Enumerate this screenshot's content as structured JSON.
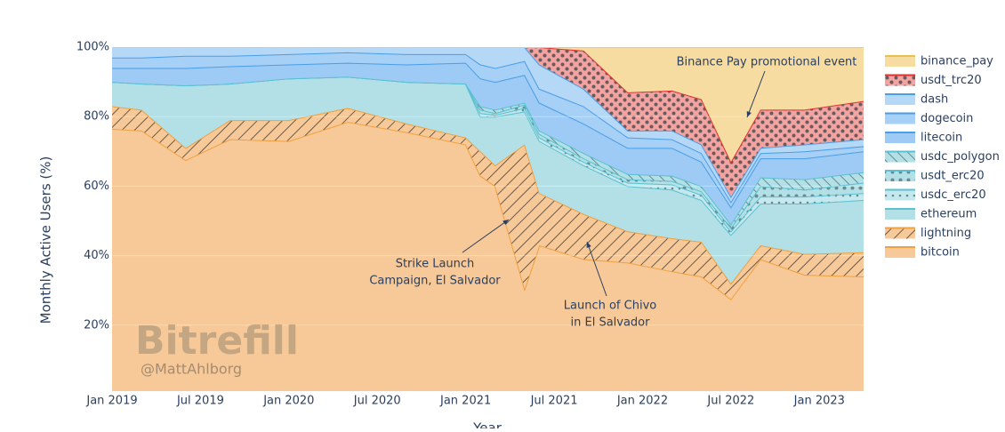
{
  "chart_data": {
    "type": "stacked_area",
    "x_label": "Year",
    "y_label": "Monthly Active Users (%)",
    "x": [
      "2019-01",
      "2019-03",
      "2019-06",
      "2019-09",
      "2020-01",
      "2020-05",
      "2020-09",
      "2021-01",
      "2021-02",
      "2021-03",
      "2021-05",
      "2021-06",
      "2021-09",
      "2021-12",
      "2022-03",
      "2022-05",
      "2022-07",
      "2022-09",
      "2022-12",
      "2023-04"
    ],
    "xlim": [
      "2019-01",
      "2023-04"
    ],
    "xticks": [
      {
        "value": "2019-01",
        "label": "Jan 2019"
      },
      {
        "value": "2019-07",
        "label": "Jul 2019"
      },
      {
        "value": "2020-01",
        "label": "Jan 2020"
      },
      {
        "value": "2020-07",
        "label": "Jul 2020"
      },
      {
        "value": "2021-01",
        "label": "Jan 2021"
      },
      {
        "value": "2021-07",
        "label": "Jul 2021"
      },
      {
        "value": "2022-01",
        "label": "Jan 2022"
      },
      {
        "value": "2022-07",
        "label": "Jul 2022"
      },
      {
        "value": "2023-01",
        "label": "Jan 2023"
      }
    ],
    "ylim": [
      0,
      100
    ],
    "yticks": [
      {
        "value": 20,
        "label": "20%"
      },
      {
        "value": 40,
        "label": "40%"
      },
      {
        "value": 60,
        "label": "60%"
      },
      {
        "value": 80,
        "label": "80%"
      },
      {
        "value": 100,
        "label": "100%"
      }
    ],
    "legend": "right",
    "series": [
      {
        "name": "bitcoin",
        "color": "#f7c998",
        "line_color": "#f0a040",
        "pattern": "none",
        "values": [
          76.5,
          76,
          67.5,
          73.5,
          73,
          78.5,
          75.5,
          72,
          63,
          60,
          30.5,
          43,
          39,
          38,
          35.5,
          34,
          27.5,
          39,
          34.5,
          34
        ]
      },
      {
        "name": "lightning",
        "color": "#f7c998",
        "line_color": "#f0a040",
        "pattern": "hatch",
        "values": [
          6.5,
          6,
          3.5,
          5.5,
          6,
          4,
          2.5,
          2,
          7,
          6,
          41.5,
          15,
          13,
          9,
          9.5,
          10,
          4.5,
          4,
          6,
          7
        ]
      },
      {
        "name": "ethereum",
        "color": "#b2e0e6",
        "line_color": "#5bc0d0",
        "pattern": "none",
        "values": [
          7,
          7.5,
          18,
          10.5,
          12,
          9,
          12,
          15.5,
          10,
          14,
          9.5,
          15,
          14,
          13,
          14,
          12,
          14,
          12,
          14.5,
          15
        ]
      },
      {
        "name": "usdc_erc20",
        "color": "#c4e8ee",
        "line_color": "#5bc0d0",
        "pattern": "dots",
        "values": [
          0,
          0,
          0,
          0,
          0,
          0,
          0,
          0,
          1,
          0.5,
          1,
          1,
          1,
          1,
          1.5,
          1.5,
          1,
          2,
          2,
          2
        ]
      },
      {
        "name": "usdt_erc20",
        "color": "#b2e0e6",
        "line_color": "#5bc0d0",
        "pattern": "dots",
        "values": [
          0,
          0,
          0,
          0,
          0,
          0,
          0,
          0,
          1,
          0.5,
          1,
          1,
          1,
          1,
          1,
          1,
          1,
          3,
          2,
          3
        ]
      },
      {
        "name": "usdc_polygon",
        "color": "#b2e0e6",
        "line_color": "#5bc0d0",
        "pattern": "hatch2",
        "values": [
          0,
          0,
          0,
          0,
          0,
          0,
          0,
          0,
          1,
          1,
          0.5,
          1,
          1.5,
          1.5,
          1.5,
          1.5,
          1,
          2.5,
          3,
          3
        ]
      },
      {
        "name": "litecoin",
        "color": "#9ecbf5",
        "line_color": "#4a9de8",
        "pattern": "none",
        "values": [
          4,
          4.5,
          5,
          5,
          4,
          4,
          5,
          6,
          8,
          8,
          8,
          8,
          8.5,
          7.5,
          8,
          7,
          5,
          5.5,
          6,
          6
        ]
      },
      {
        "name": "dogecoin",
        "color": "#a6d0f6",
        "line_color": "#4a9de8",
        "pattern": "none",
        "values": [
          3,
          3,
          3.5,
          3,
          3,
          3,
          3,
          2.5,
          4,
          4,
          4,
          4,
          5,
          3,
          2.5,
          2.5,
          1.5,
          1.5,
          2,
          1.5
        ]
      },
      {
        "name": "dash",
        "color": "#b5d8f7",
        "line_color": "#4a9de8",
        "pattern": "none",
        "values": [
          3,
          3,
          2.5,
          2.5,
          2,
          1.5,
          2,
          2,
          5,
          6,
          4,
          7,
          5,
          2,
          2.5,
          2.5,
          1.5,
          1.5,
          2,
          2
        ]
      },
      {
        "name": "usdt_trc20",
        "color": "#f4a3a3",
        "line_color": "#e03030",
        "pattern": "dots",
        "values": [
          0,
          0,
          0,
          0,
          0,
          0,
          0,
          0,
          0,
          0,
          0,
          5,
          11,
          11,
          11.5,
          13,
          10,
          11,
          10,
          11
        ]
      },
      {
        "name": "binance_pay",
        "color": "#f6dca0",
        "line_color": "#e8c050",
        "pattern": "none",
        "values": [
          0,
          0,
          0,
          0,
          0,
          0,
          0,
          0,
          0,
          0,
          0,
          0,
          1,
          13,
          12.5,
          15,
          33,
          18,
          18,
          15.5
        ]
      }
    ],
    "annotations": [
      {
        "lines": [
          "Binance Pay promotional event"
        ]
      },
      {
        "lines": [
          "Strike Launch",
          "Campaign, El Salvador"
        ]
      },
      {
        "lines": [
          "Launch of Chivo",
          "in El Salvador"
        ]
      }
    ],
    "watermark": {
      "logo": "Bitrefill",
      "credit": "@MattAhlborg"
    }
  }
}
